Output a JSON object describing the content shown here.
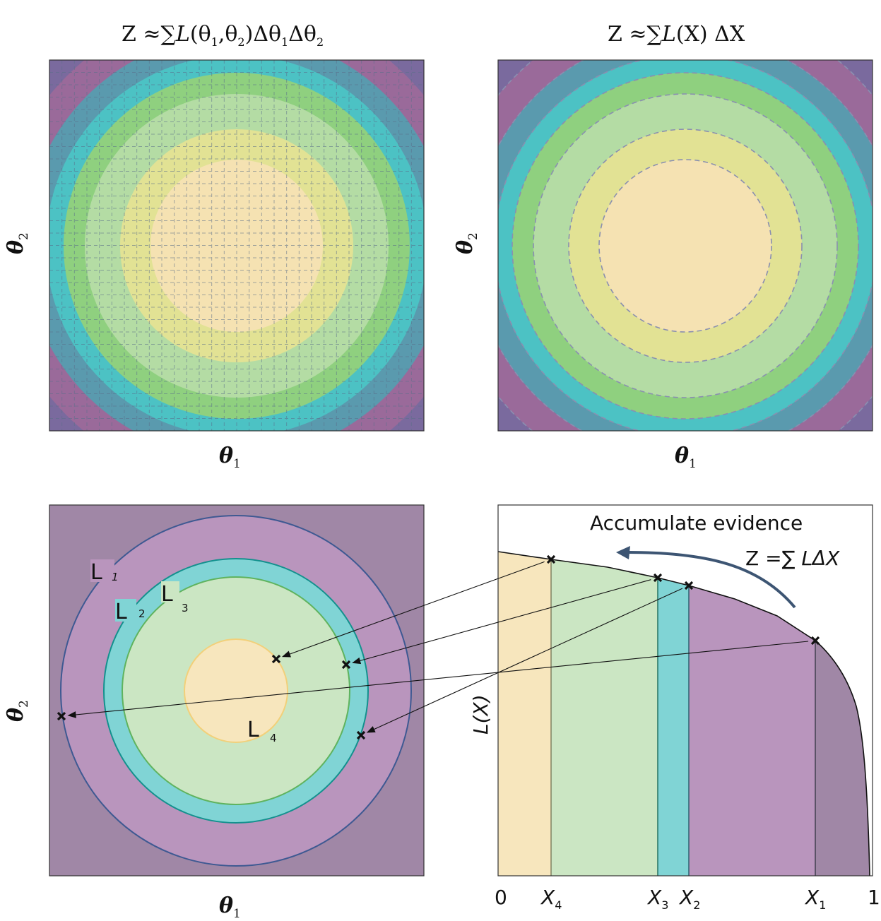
{
  "panels": {
    "top_left": {
      "title": {
        "prefix": "Z ≈∑",
        "L": "L",
        "args": "(θ",
        "s1": "1",
        "comma": ",θ",
        "s2": "2",
        "close": ")Δθ",
        "s3": "1",
        "mid": "Δθ",
        "s4": "2"
      },
      "xlabel": {
        "sym": "θ",
        "sub": "1"
      },
      "ylabel": {
        "sym": "θ",
        "sub": "2"
      },
      "grid": "dashed rectangular grid"
    },
    "top_right": {
      "title": {
        "prefix": "Z ≈∑",
        "L": "L",
        "rest": "(X) ΔX"
      },
      "xlabel": {
        "sym": "θ",
        "sub": "1"
      },
      "ylabel": {
        "sym": "θ",
        "sub": "2"
      },
      "grid": "dashed concentric contours"
    },
    "bottom_left": {
      "xlabel": {
        "sym": "θ",
        "sub": "1"
      },
      "ylabel": {
        "sym": "θ",
        "sub": "2"
      },
      "contour_labels": [
        {
          "main": "L",
          "sub": "1"
        },
        {
          "main": "L",
          "sub": "2"
        },
        {
          "main": "L",
          "sub": "3"
        },
        {
          "main": "L",
          "sub": "4"
        }
      ]
    },
    "bottom_right": {
      "annotation": "Accumulate evidence",
      "formula": {
        "text": "Z =∑ ",
        "rest": "LΔX"
      },
      "ylabel": "L(X)",
      "xticks": [
        {
          "main": "0",
          "sub": ""
        },
        {
          "main": "X",
          "sub": "4"
        },
        {
          "main": "X",
          "sub": "3"
        },
        {
          "main": "X",
          "sub": "2"
        },
        {
          "main": "X",
          "sub": "1"
        },
        {
          "main": "1",
          "sub": ""
        }
      ]
    }
  },
  "colors": {
    "band0": "#f5e2b2",
    "band1": "#e2e294",
    "band2": "#b4dca4",
    "band3": "#8fd07f",
    "band4": "#4cc2c4",
    "band5": "#5a9aae",
    "band6": "#9a6a9a",
    "band7": "#7a6a9e",
    "corner": "#6a4a7a",
    "outer_bg": "#a087a6",
    "purple_band": "#b995bd",
    "teal_band": "#80d4d5",
    "green_band": "#cbe6c3",
    "yellow_band": "#f7e6bd",
    "contour_blue": "#3e5992",
    "contour_teal": "#13918e",
    "contour_green": "#5fb35e",
    "contour_yellow": "#f2d07a",
    "arrow": "#3d5573"
  }
}
